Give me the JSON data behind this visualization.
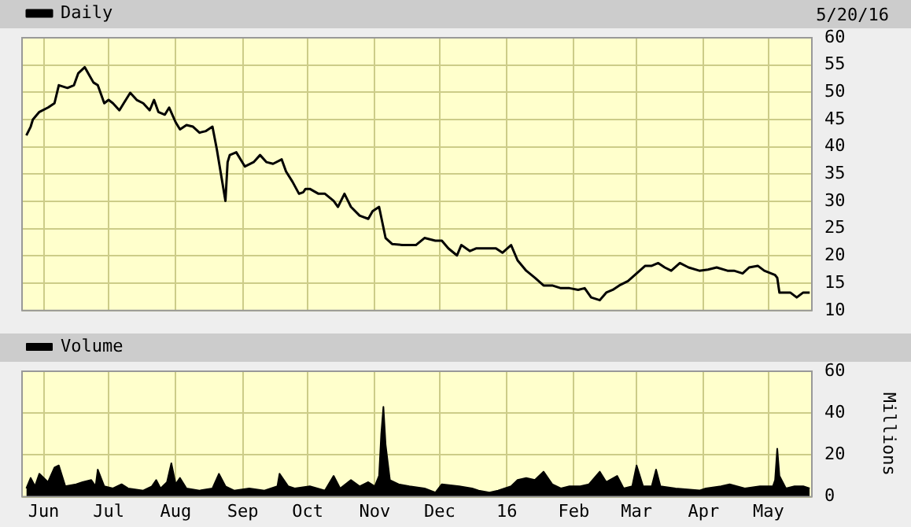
{
  "chart_data": [
    {
      "type": "line",
      "annotations": [
        "5/20/16"
      ],
      "legend": "top left",
      "grid": true,
      "tick_labels": "y",
      "marker": "none",
      "xlim": [
        "2015-05-22",
        "2016-05-21"
      ],
      "xticks": [
        {
          "value": "2015-06-01",
          "label": null
        },
        {
          "value": "2015-07-01",
          "label": null
        },
        {
          "value": "2015-08-01",
          "label": null
        },
        {
          "value": "2015-09-01",
          "label": null
        },
        {
          "value": "2015-10-01",
          "label": null
        },
        {
          "value": "2015-11-01",
          "label": null
        },
        {
          "value": "2015-12-01",
          "label": null
        },
        {
          "value": "2016-01-01",
          "label": null
        },
        {
          "value": "2016-02-01",
          "label": null
        },
        {
          "value": "2016-03-01",
          "label": null
        },
        {
          "value": "2016-04-01",
          "label": null
        },
        {
          "value": "2016-05-01",
          "label": null
        }
      ],
      "ylim": [
        10,
        60
      ],
      "yticks": [
        10,
        15,
        20,
        25,
        30,
        35,
        40,
        45,
        50,
        55,
        60
      ],
      "x": [
        "2015-05-24",
        "2015-05-26",
        "2015-05-27",
        "2015-05-30",
        "2015-06-03",
        "2015-06-06",
        "2015-06-08",
        "2015-06-12",
        "2015-06-15",
        "2015-06-17",
        "2015-06-20",
        "2015-06-22",
        "2015-06-24",
        "2015-06-26",
        "2015-06-29",
        "2015-07-01",
        "2015-07-03",
        "2015-07-06",
        "2015-07-08",
        "2015-07-11",
        "2015-07-14",
        "2015-07-17",
        "2015-07-20",
        "2015-07-22",
        "2015-07-24",
        "2015-07-27",
        "2015-07-29",
        "2015-08-01",
        "2015-08-03",
        "2015-08-06",
        "2015-08-09",
        "2015-08-12",
        "2015-08-15",
        "2015-08-18",
        "2015-08-20",
        "2015-08-24",
        "2015-08-25",
        "2015-08-26",
        "2015-08-29",
        "2015-09-02",
        "2015-09-06",
        "2015-09-09",
        "2015-09-12",
        "2015-09-15",
        "2015-09-19",
        "2015-09-21",
        "2015-09-24",
        "2015-09-27",
        "2015-09-29",
        "2015-09-30",
        "2015-10-02",
        "2015-10-06",
        "2015-10-09",
        "2015-10-13",
        "2015-10-15",
        "2015-10-18",
        "2015-10-21",
        "2015-10-25",
        "2015-10-29",
        "2015-10-31",
        "2015-11-03",
        "2015-11-06",
        "2015-11-09",
        "2015-11-14",
        "2015-11-20",
        "2015-11-24",
        "2015-11-29",
        "2015-12-02",
        "2015-12-05",
        "2015-12-09",
        "2015-12-11",
        "2015-12-15",
        "2015-12-18",
        "2015-12-22",
        "2015-12-27",
        "2015-12-30",
        "2016-01-03",
        "2016-01-06",
        "2016-01-10",
        "2016-01-14",
        "2016-01-18",
        "2016-01-22",
        "2016-01-26",
        "2016-01-30",
        "2016-02-03",
        "2016-02-06",
        "2016-02-09",
        "2016-02-13",
        "2016-02-16",
        "2016-02-19",
        "2016-02-22",
        "2016-02-26",
        "2016-03-01",
        "2016-03-05",
        "2016-03-08",
        "2016-03-11",
        "2016-03-14",
        "2016-03-17",
        "2016-03-21",
        "2016-03-25",
        "2016-03-30",
        "2016-04-03",
        "2016-04-07",
        "2016-04-12",
        "2016-04-15",
        "2016-04-19",
        "2016-04-22",
        "2016-04-26",
        "2016-04-29",
        "2016-05-04",
        "2016-05-05",
        "2016-05-06",
        "2016-05-11",
        "2016-05-14",
        "2016-05-17",
        "2016-05-20"
      ],
      "series": [
        {
          "name": "Daily",
          "color": "#000000",
          "values": [
            42.1,
            43.7,
            45.0,
            46.4,
            47.2,
            48.0,
            51.3,
            50.8,
            51.3,
            53.5,
            54.6,
            53.2,
            51.8,
            51.3,
            48.0,
            48.6,
            48.0,
            46.7,
            48.0,
            49.9,
            48.6,
            48.0,
            46.7,
            48.6,
            46.4,
            45.9,
            47.2,
            44.5,
            43.2,
            44.0,
            43.7,
            42.6,
            42.9,
            43.7,
            39.6,
            30.1,
            37.2,
            38.5,
            39.0,
            36.4,
            37.2,
            38.5,
            37.2,
            36.9,
            37.7,
            35.5,
            33.6,
            31.4,
            31.7,
            32.3,
            32.3,
            31.4,
            31.4,
            30.1,
            29.0,
            31.4,
            29.0,
            27.4,
            26.8,
            28.2,
            29.0,
            23.3,
            22.2,
            22.0,
            22.0,
            23.3,
            22.8,
            22.8,
            21.4,
            20.1,
            22.0,
            20.9,
            21.4,
            21.4,
            21.4,
            20.6,
            22.0,
            19.2,
            17.3,
            16.0,
            14.6,
            14.6,
            14.1,
            14.1,
            13.8,
            14.1,
            12.4,
            11.9,
            13.3,
            13.8,
            14.6,
            15.4,
            16.8,
            18.2,
            18.2,
            18.7,
            17.9,
            17.3,
            18.7,
            17.9,
            17.3,
            17.5,
            17.9,
            17.3,
            17.3,
            16.8,
            17.9,
            18.2,
            17.3,
            16.5,
            16.0,
            13.3,
            13.3,
            12.4,
            13.3,
            13.3
          ]
        }
      ]
    },
    {
      "type": "area",
      "ylabel": "Millions",
      "legend": "top left",
      "grid": true,
      "xlim": [
        "2015-05-22",
        "2016-05-21"
      ],
      "xticks": [
        {
          "value": "2015-06-01",
          "label": "Jun"
        },
        {
          "value": "2015-07-01",
          "label": "Jul"
        },
        {
          "value": "2015-08-01",
          "label": "Aug"
        },
        {
          "value": "2015-09-01",
          "label": "Sep"
        },
        {
          "value": "2015-10-01",
          "label": "Oct"
        },
        {
          "value": "2015-11-01",
          "label": "Nov"
        },
        {
          "value": "2015-12-01",
          "label": "Dec"
        },
        {
          "value": "2016-01-01",
          "label": "16"
        },
        {
          "value": "2016-02-01",
          "label": "Feb"
        },
        {
          "value": "2016-03-01",
          "label": "Mar"
        },
        {
          "value": "2016-04-01",
          "label": "Apr"
        },
        {
          "value": "2016-05-01",
          "label": "May"
        }
      ],
      "ylim": [
        0,
        60
      ],
      "yticks": [
        0,
        20,
        40,
        60
      ],
      "x": [
        "2015-05-24",
        "2015-05-26",
        "2015-05-28",
        "2015-05-30",
        "2015-06-03",
        "2015-06-06",
        "2015-06-08",
        "2015-06-11",
        "2015-06-16",
        "2015-06-19",
        "2015-06-23",
        "2015-06-25",
        "2015-06-26",
        "2015-06-29",
        "2015-07-03",
        "2015-07-07",
        "2015-07-10",
        "2015-07-17",
        "2015-07-21",
        "2015-07-23",
        "2015-07-25",
        "2015-07-28",
        "2015-07-30",
        "2015-08-01",
        "2015-08-03",
        "2015-08-06",
        "2015-08-12",
        "2015-08-18",
        "2015-08-21",
        "2015-08-24",
        "2015-08-28",
        "2015-09-04",
        "2015-09-11",
        "2015-09-17",
        "2015-09-18",
        "2015-09-22",
        "2015-09-25",
        "2015-10-02",
        "2015-10-09",
        "2015-10-13",
        "2015-10-16",
        "2015-10-21",
        "2015-10-25",
        "2015-10-29",
        "2015-11-01",
        "2015-11-03",
        "2015-11-04",
        "2015-11-05",
        "2015-11-06",
        "2015-11-08",
        "2015-11-12",
        "2015-11-17",
        "2015-11-24",
        "2015-11-29",
        "2015-12-02",
        "2015-12-10",
        "2015-12-16",
        "2015-12-19",
        "2015-12-24",
        "2015-12-28",
        "2016-01-03",
        "2016-01-06",
        "2016-01-10",
        "2016-01-14",
        "2016-01-18",
        "2016-01-22",
        "2016-01-26",
        "2016-01-30",
        "2016-02-04",
        "2016-02-08",
        "2016-02-13",
        "2016-02-16",
        "2016-02-21",
        "2016-02-24",
        "2016-02-28",
        "2016-03-01",
        "2016-03-04",
        "2016-03-08",
        "2016-03-10",
        "2016-03-12",
        "2016-03-19",
        "2016-03-30",
        "2016-04-02",
        "2016-04-09",
        "2016-04-13",
        "2016-04-20",
        "2016-04-27",
        "2016-05-03",
        "2016-05-04",
        "2016-05-05",
        "2016-05-06",
        "2016-05-09",
        "2016-05-13",
        "2016-05-17",
        "2016-05-20"
      ],
      "series": [
        {
          "name": "Volume",
          "color": "#000000",
          "values": [
            4,
            9,
            5,
            11,
            7,
            14,
            15,
            5,
            6,
            7,
            8,
            5,
            13,
            5,
            4,
            6,
            4,
            3,
            5,
            8,
            4,
            7,
            16,
            6,
            9,
            4,
            3,
            4,
            11,
            5,
            3,
            4,
            3,
            5,
            11,
            5,
            4,
            5,
            3,
            10,
            4,
            8,
            5,
            7,
            5,
            10,
            30,
            43,
            25,
            8,
            6,
            5,
            4,
            2,
            6,
            5,
            4,
            3,
            2,
            3,
            5,
            8,
            9,
            8,
            12,
            6,
            4,
            5,
            5,
            6,
            12,
            7,
            10,
            4,
            5,
            15,
            5,
            5,
            13,
            5,
            4,
            3,
            4,
            5,
            6,
            4,
            5,
            5,
            8,
            23,
            10,
            4,
            5,
            5,
            4
          ]
        }
      ]
    }
  ]
}
